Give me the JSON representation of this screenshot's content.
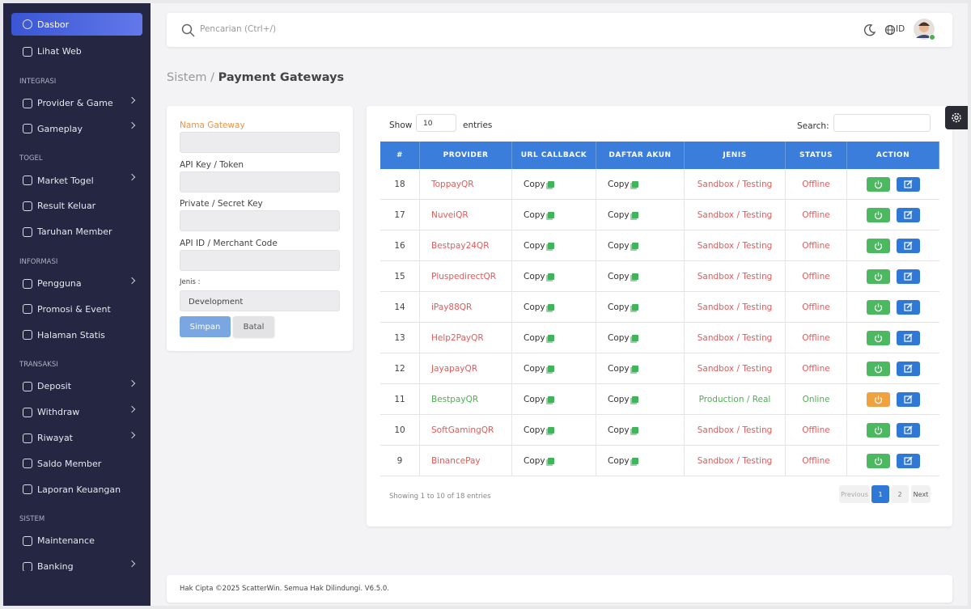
{
  "sidebar": {
    "groups": [
      {
        "items": [
          {
            "label": "Dasbor",
            "active": true
          },
          {
            "label": "Lihat Web"
          }
        ]
      },
      {
        "title": "INTEGRASI",
        "items": [
          {
            "label": "Provider & Game",
            "arrow": true
          },
          {
            "label": "Gameplay",
            "arrow": true
          }
        ]
      },
      {
        "title": "TOGEL",
        "items": [
          {
            "label": "Market Togel",
            "arrow": true
          },
          {
            "label": "Result Keluar"
          },
          {
            "label": "Taruhan Member"
          }
        ]
      },
      {
        "title": "INFORMASI",
        "items": [
          {
            "label": "Pengguna",
            "arrow": true
          },
          {
            "label": "Promosi & Event"
          },
          {
            "label": "Halaman Statis"
          }
        ]
      },
      {
        "title": "TRANSAKSI",
        "items": [
          {
            "label": "Deposit",
            "arrow": true
          },
          {
            "label": "Withdraw",
            "arrow": true
          },
          {
            "label": "Riwayat",
            "arrow": true
          },
          {
            "label": "Saldo Member"
          },
          {
            "label": "Laporan Keuangan"
          }
        ]
      },
      {
        "title": "SISTEM",
        "items": [
          {
            "label": "Maintenance"
          },
          {
            "label": "Banking",
            "arrow": true
          }
        ]
      }
    ]
  },
  "topbar": {
    "search_placeholder": "Pencarian (Ctrl+/)",
    "language": "ID"
  },
  "breadcrumb": {
    "parent": "Sistem",
    "separator": "/",
    "current": "Payment Gateways"
  },
  "form": {
    "fields": [
      "Nama Gateway",
      "API Key / Token",
      "Private / Secret Key",
      "API ID / Merchant Code"
    ],
    "select_label": "Jenis :",
    "select_value": "Development",
    "save": "Simpan",
    "cancel": "Batal"
  },
  "table": {
    "show": "Show",
    "page_size": "10",
    "entries": "entries",
    "search": "Search:",
    "columns": [
      "#",
      "PROVIDER",
      "URL CALLBACK",
      "DAFTAR AKUN",
      "JENIS",
      "STATUS",
      "ACTION"
    ],
    "rows": [
      {
        "id": "18",
        "provider": "ToppayQR",
        "url_callback": "Copy",
        "daftar_akun": "Copy",
        "jenis": "Sandbox / Testing",
        "status": "Offline",
        "online": false
      },
      {
        "id": "17",
        "provider": "NuveiQR",
        "url_callback": "Copy",
        "daftar_akun": "Copy",
        "jenis": "Sandbox / Testing",
        "status": "Offline",
        "online": false
      },
      {
        "id": "16",
        "provider": "Bestpay24QR",
        "url_callback": "Copy",
        "daftar_akun": "Copy",
        "jenis": "Sandbox / Testing",
        "status": "Offline",
        "online": false
      },
      {
        "id": "15",
        "provider": "PluspedirectQR",
        "url_callback": "Copy",
        "daftar_akun": "Copy",
        "jenis": "Sandbox / Testing",
        "status": "Offline",
        "online": false
      },
      {
        "id": "14",
        "provider": "iPay88QR",
        "url_callback": "Copy",
        "daftar_akun": "Copy",
        "jenis": "Sandbox / Testing",
        "status": "Offline",
        "online": false
      },
      {
        "id": "13",
        "provider": "Help2PayQR",
        "url_callback": "Copy",
        "daftar_akun": "Copy",
        "jenis": "Sandbox / Testing",
        "status": "Offline",
        "online": false
      },
      {
        "id": "12",
        "provider": "JayapayQR",
        "url_callback": "Copy",
        "daftar_akun": "Copy",
        "jenis": "Sandbox / Testing",
        "status": "Offline",
        "online": false
      },
      {
        "id": "11",
        "provider": "BestpayQR",
        "url_callback": "Copy",
        "daftar_akun": "Copy",
        "jenis": "Production / Real",
        "status": "Online",
        "online": true
      },
      {
        "id": "10",
        "provider": "SoftGamingQR",
        "url_callback": "Copy",
        "daftar_akun": "Copy",
        "jenis": "Sandbox / Testing",
        "status": "Offline",
        "online": false
      },
      {
        "id": "9",
        "provider": "BinancePay",
        "url_callback": "Copy",
        "daftar_akun": "Copy",
        "jenis": "Sandbox / Testing",
        "status": "Offline",
        "online": false
      }
    ],
    "info": "Showing 1 to 10 of 18 entries",
    "pagination": {
      "previous": "Previous",
      "pages": [
        "1",
        "2"
      ],
      "next": "Next"
    }
  },
  "footer": "Hak Cipta ©2025 ScatterWin. Semua Hak Dilindungi. V6.5.0."
}
